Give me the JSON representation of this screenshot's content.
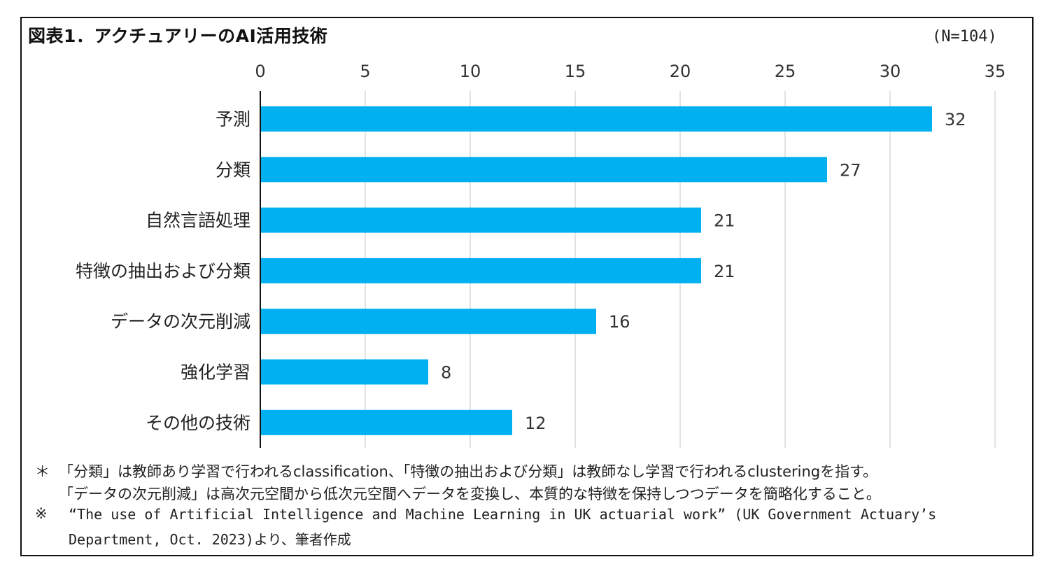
{
  "title": "図表1．アクチュアリーのAI活用技術",
  "sample_note": "(N=104)",
  "chart_data": {
    "type": "bar",
    "orientation": "horizontal",
    "categories": [
      "予測",
      "分類",
      "自然言語処理",
      "特徴の抽出および分類",
      "データの次元削減",
      "強化学習",
      "その他の技術"
    ],
    "values": [
      32,
      27,
      21,
      21,
      16,
      8,
      12
    ],
    "xlim": [
      0,
      35
    ],
    "xticks": [
      0,
      5,
      10,
      15,
      20,
      25,
      30,
      35
    ],
    "x_axis_position": "top",
    "grid": "vertical",
    "bar_color": "#00B0F0",
    "data_labels": true
  },
  "footnotes": {
    "line1_mark": "＊",
    "line1": "「分類」は教師あり学習で行われるclassification、「特徴の抽出および分類」は教師なし学習で行われるclusteringを指す。",
    "line2": "「データの次元削減」は高次元空間から低次元空間へデータを変換し、本質的な特徴を保持しつつデータを簡略化すること。",
    "line3_mark": "※",
    "line3": "“The use of Artificial Intelligence and Machine Learning in UK actuarial work” (UK Government Actuary’s",
    "line4": "Department, Oct. 2023)より、筆者作成"
  }
}
